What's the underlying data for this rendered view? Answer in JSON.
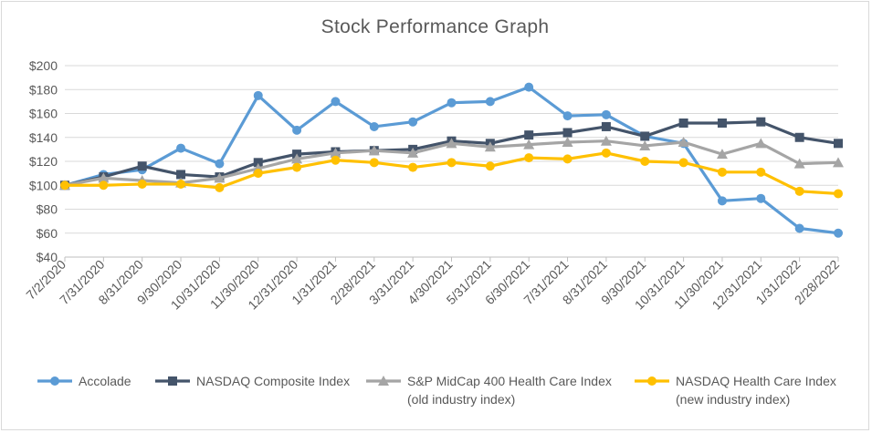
{
  "chart_data": {
    "type": "line",
    "title": "Stock Performance Graph",
    "xlabel": "",
    "ylabel": "",
    "ylim": [
      40,
      200
    ],
    "yticks": [
      "$40",
      "$60",
      "$80",
      "$100",
      "$120",
      "$140",
      "$160",
      "$180",
      "$200"
    ],
    "ytick_values": [
      40,
      60,
      80,
      100,
      120,
      140,
      160,
      180,
      200
    ],
    "grid": true,
    "legend_position": "bottom",
    "categories": [
      "7/2/2020",
      "7/31/2020",
      "8/31/2020",
      "9/30/2020",
      "10/31/2020",
      "11/30/2020",
      "12/31/2020",
      "1/31/2021",
      "2/28/2021",
      "3/31/2021",
      "4/30/2021",
      "5/31/2021",
      "6/30/2021",
      "7/31/2021",
      "8/31/2021",
      "9/30/2021",
      "10/31/2021",
      "11/30/2021",
      "12/31/2021",
      "1/31/2022",
      "2/28/2022"
    ],
    "series": [
      {
        "name": "Accolade",
        "name_lines": [
          "Accolade"
        ],
        "color": "#5b9bd5",
        "marker": "circle",
        "values": [
          100,
          109,
          113,
          131,
          118,
          175,
          146,
          170,
          149,
          153,
          169,
          170,
          182,
          158,
          159,
          141,
          135,
          87,
          89,
          64,
          60
        ]
      },
      {
        "name": "NASDAQ Composite Index",
        "name_lines": [
          "NASDAQ Composite Index"
        ],
        "color": "#44546a",
        "marker": "square",
        "values": [
          100,
          107,
          116,
          109,
          107,
          119,
          126,
          128,
          129,
          130,
          137,
          135,
          142,
          144,
          149,
          141,
          152,
          152,
          153,
          140,
          135
        ]
      },
      {
        "name": "S&P MidCap 400 Health Care Index (old industry index)",
        "name_lines": [
          "S&P MidCap 400 Health Care Index",
          "(old industry index)"
        ],
        "color": "#a5a5a5",
        "marker": "triangle",
        "values": [
          100,
          106,
          104,
          102,
          106,
          114,
          122,
          127,
          129,
          127,
          135,
          132,
          134,
          136,
          137,
          133,
          136,
          126,
          135,
          118,
          119
        ]
      },
      {
        "name": "NASDAQ Health Care Index (new industry index)",
        "name_lines": [
          "NASDAQ Health Care Index",
          "(new industry index)"
        ],
        "color": "#ffc000",
        "marker": "circle",
        "values": [
          100,
          100,
          101,
          101,
          98,
          110,
          115,
          121,
          119,
          115,
          119,
          116,
          123,
          122,
          127,
          120,
          119,
          111,
          111,
          95,
          93
        ]
      }
    ]
  }
}
